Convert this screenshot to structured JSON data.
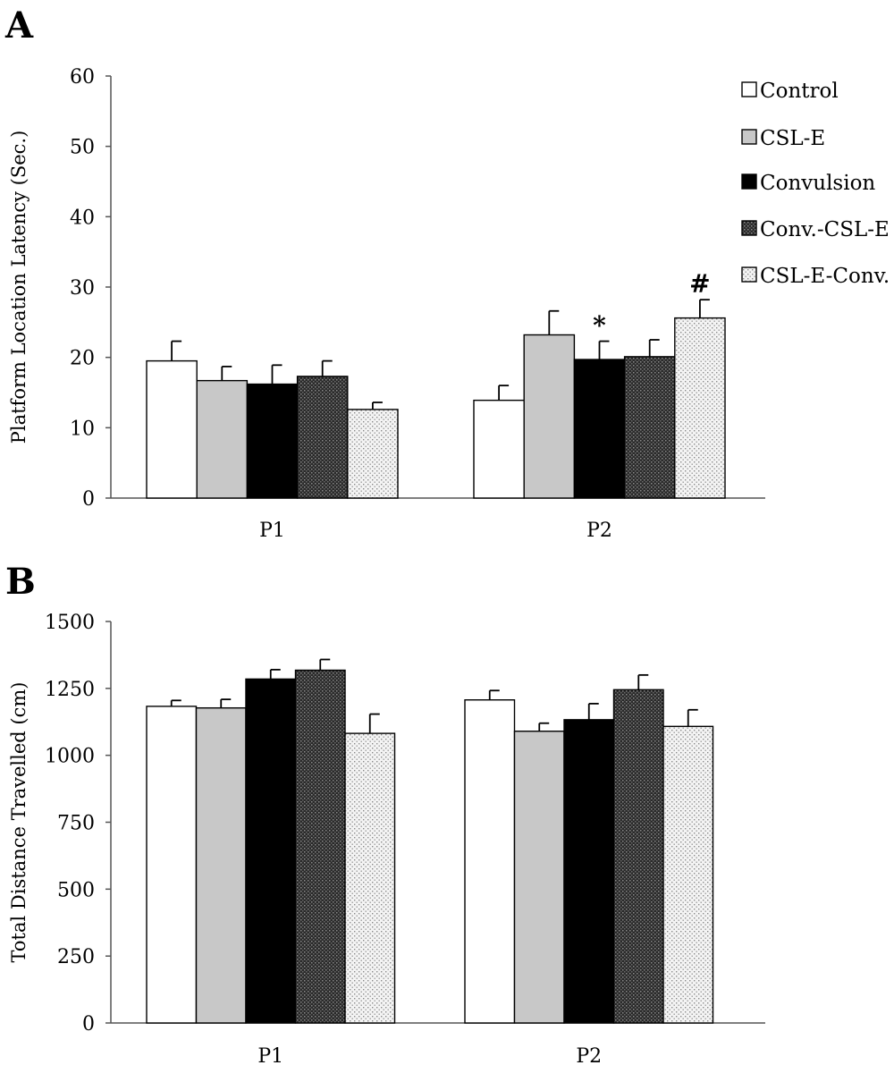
{
  "chart_data": [
    {
      "panel": "A",
      "type": "bar",
      "ylabel": "Platform Location Latency (Sec.)",
      "ylim": [
        0,
        60
      ],
      "yticks": [
        "0",
        "10",
        "20",
        "30",
        "40",
        "50",
        "60"
      ],
      "categories": [
        "P1",
        "P2"
      ],
      "series": [
        {
          "name": "Control",
          "values": [
            19.5,
            13.9
          ],
          "errors": [
            2.8,
            2.1
          ],
          "marks": [
            "",
            ""
          ]
        },
        {
          "name": "CSL-E",
          "values": [
            16.7,
            23.2
          ],
          "errors": [
            2.0,
            3.4
          ],
          "marks": [
            "",
            ""
          ]
        },
        {
          "name": "Convulsion",
          "values": [
            16.2,
            19.7
          ],
          "errors": [
            2.7,
            2.6
          ],
          "marks": [
            "",
            "*"
          ]
        },
        {
          "name": "Conv.-CSL-E",
          "values": [
            17.3,
            20.1
          ],
          "errors": [
            2.2,
            2.4
          ],
          "marks": [
            "",
            ""
          ]
        },
        {
          "name": "CSL-E-Conv.",
          "values": [
            12.6,
            25.6
          ],
          "errors": [
            1.0,
            2.6
          ],
          "marks": [
            "",
            "#"
          ]
        }
      ],
      "legend_position": "top-right",
      "grid": false
    },
    {
      "panel": "B",
      "type": "bar",
      "ylabel": "Total Distance Travelled (cm)",
      "ylim": [
        0,
        1500
      ],
      "yticks": [
        "0",
        "250",
        "500",
        "750",
        "1000",
        "1250",
        "1500"
      ],
      "categories": [
        "P1",
        "P2"
      ],
      "series": [
        {
          "name": "Control",
          "values": [
            1183,
            1207
          ],
          "errors": [
            22,
            35
          ]
        },
        {
          "name": "CSL-E",
          "values": [
            1177,
            1090
          ],
          "errors": [
            32,
            30
          ]
        },
        {
          "name": "Convulsion",
          "values": [
            1285,
            1133
          ],
          "errors": [
            35,
            60
          ]
        },
        {
          "name": "Conv.-CSL-E",
          "values": [
            1318,
            1245
          ],
          "errors": [
            40,
            55
          ]
        },
        {
          "name": "CSL-E-Conv.",
          "values": [
            1082,
            1108
          ],
          "errors": [
            72,
            62
          ]
        }
      ],
      "legend_position": "none",
      "grid": false
    }
  ],
  "styles": {
    "series_fills": [
      "#ffffff",
      "#c8c8c8",
      "#000000",
      "url(#pat-dark)",
      "url(#pat-light)"
    ],
    "axis_color": "#555555",
    "bar_stroke": "#000000"
  }
}
